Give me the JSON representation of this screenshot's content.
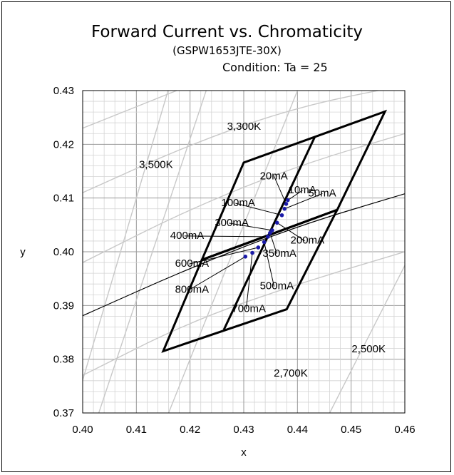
{
  "header": {
    "title": "Forward Current vs. Chromaticity",
    "subtitle": "(GSPW1653JTE-30X)",
    "condition": "Condition: Ta = 25"
  },
  "colors": {
    "grid": "#b0b0b0",
    "isotherm": "#c8c8c8",
    "locus": "#000000",
    "bins": "#000000",
    "points": "#1a1aa8"
  },
  "chart_data": {
    "type": "scatter",
    "title": "Forward Current vs. Chromaticity",
    "xlabel": "x",
    "ylabel": "y",
    "xlim": [
      0.4,
      0.46
    ],
    "ylim": [
      0.37,
      0.43
    ],
    "x_ticks": [
      "0.40",
      "0.41",
      "0.42",
      "0.43",
      "0.44",
      "0.45",
      "0.46"
    ],
    "y_ticks": [
      "0.37",
      "0.38",
      "0.39",
      "0.40",
      "0.41",
      "0.42",
      "0.43"
    ],
    "grid": true,
    "series": [
      {
        "points": [
          {
            "current": "10mA",
            "x": 0.4382,
            "y": 0.4096
          },
          {
            "current": "20mA",
            "x": 0.4379,
            "y": 0.4089
          },
          {
            "current": "50mA",
            "x": 0.4376,
            "y": 0.408
          },
          {
            "current": "100mA",
            "x": 0.4371,
            "y": 0.4068
          },
          {
            "current": "200mA",
            "x": 0.4362,
            "y": 0.4054
          },
          {
            "current": "300mA",
            "x": 0.4353,
            "y": 0.404
          },
          {
            "current": "350mA",
            "x": 0.4349,
            "y": 0.4035
          },
          {
            "current": "400mA",
            "x": 0.4345,
            "y": 0.4028
          },
          {
            "current": "500mA",
            "x": 0.4338,
            "y": 0.4018
          },
          {
            "current": "600mA",
            "x": 0.4327,
            "y": 0.4008
          },
          {
            "current": "700mA",
            "x": 0.4316,
            "y": 0.3998
          },
          {
            "current": "800mA",
            "x": 0.4303,
            "y": 0.3991
          }
        ]
      }
    ],
    "labels": [
      {
        "text": "10mA",
        "x": 0.4383,
        "y": 0.4109
      },
      {
        "text": "20mA",
        "x": 0.433,
        "y": 0.4135
      },
      {
        "text": "50mA",
        "x": 0.442,
        "y": 0.4103
      },
      {
        "text": "100mA",
        "x": 0.4258,
        "y": 0.4085
      },
      {
        "text": "300mA",
        "x": 0.4246,
        "y": 0.4048
      },
      {
        "text": "200mA",
        "x": 0.4387,
        "y": 0.4015
      },
      {
        "text": "400mA",
        "x": 0.4163,
        "y": 0.4024
      },
      {
        "text": "350mA",
        "x": 0.4335,
        "y": 0.3991
      },
      {
        "text": "600mA",
        "x": 0.4172,
        "y": 0.3972
      },
      {
        "text": "800mA",
        "x": 0.4172,
        "y": 0.3924
      },
      {
        "text": "500mA",
        "x": 0.433,
        "y": 0.393
      },
      {
        "text": "700mA",
        "x": 0.4278,
        "y": 0.3888
      }
    ],
    "cct_labels": [
      {
        "text": "3,300K",
        "x": 0.4269,
        "y": 0.4227
      },
      {
        "text": "3,500K",
        "x": 0.4105,
        "y": 0.4156
      },
      {
        "text": "2,500K",
        "x": 0.4501,
        "y": 0.3813
      },
      {
        "text": "2,700K",
        "x": 0.4356,
        "y": 0.3768
      }
    ],
    "bins": [
      [
        [
          0.415,
          0.3815
        ],
        [
          0.4222,
          0.3985
        ],
        [
          0.4474,
          0.4078
        ],
        [
          0.438,
          0.3893
        ]
      ],
      [
        [
          0.4222,
          0.3985
        ],
        [
          0.43,
          0.4166
        ],
        [
          0.4563,
          0.4261
        ],
        [
          0.4474,
          0.4078
        ]
      ],
      [
        [
          0.4263,
          0.3855
        ],
        [
          0.4432,
          0.4213
        ]
      ],
      [
        [
          0.4222,
          0.3985
        ],
        [
          0.4474,
          0.4078
        ]
      ]
    ],
    "planckian_locus": [
      [
        0.4,
        0.3881
      ],
      [
        0.42,
        0.397
      ],
      [
        0.44,
        0.4048
      ],
      [
        0.46,
        0.4108
      ]
    ],
    "isotherm_lines": [
      [
        [
          0.3982,
          0.37
        ],
        [
          0.4159,
          0.43
        ]
      ],
      [
        [
          0.403,
          0.37
        ],
        [
          0.423,
          0.43
        ]
      ],
      [
        [
          0.416,
          0.37
        ],
        [
          0.44,
          0.43
        ]
      ],
      [
        [
          0.446,
          0.37
        ],
        [
          0.4613,
          0.4
        ]
      ]
    ],
    "iso_curves": [
      [
        [
          0.4,
          0.377
        ],
        [
          0.42,
          0.387
        ],
        [
          0.44,
          0.394
        ],
        [
          0.46,
          0.4
        ]
      ],
      [
        [
          0.4,
          0.398
        ],
        [
          0.42,
          0.408
        ],
        [
          0.44,
          0.416
        ],
        [
          0.46,
          0.422
        ]
      ],
      [
        [
          0.4,
          0.411
        ],
        [
          0.42,
          0.42
        ],
        [
          0.44,
          0.427
        ],
        [
          0.46,
          0.431
        ]
      ],
      [
        [
          0.4,
          0.423
        ],
        [
          0.42,
          0.431
        ]
      ]
    ]
  }
}
